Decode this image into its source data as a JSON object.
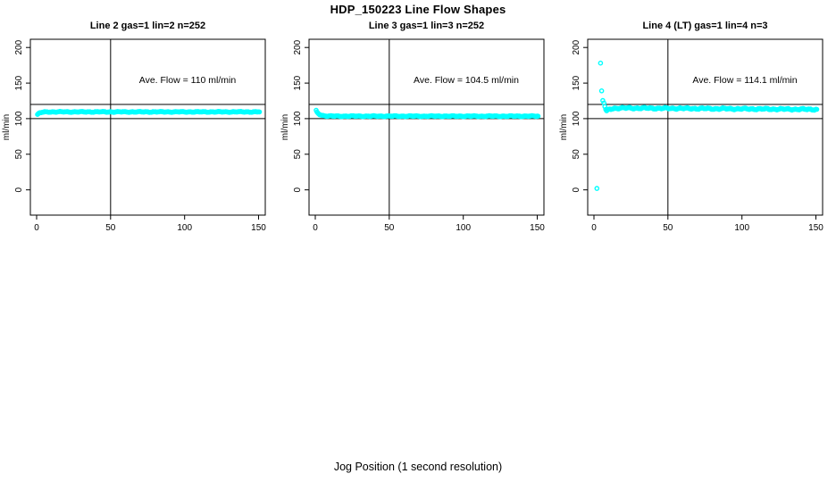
{
  "header": {
    "title": "HDP_150223  Line Flow Shapes"
  },
  "footer": {
    "xlabel": "Jog Position (1 second resolution)"
  },
  "chart_data": {
    "type": "scatter",
    "title": "HDP_150223  Line Flow Shapes",
    "xlabel": "Jog Position (1 second resolution)",
    "ylabel": "ml/min",
    "marker": "open-circle",
    "marker_color": "#00FFFF",
    "axis_color": "#000000",
    "background": "#ffffff",
    "grid": false,
    "xlim": [
      -4.2,
      154.5
    ],
    "ylim": [
      -35.5,
      211.5
    ],
    "x_ticks": [
      0,
      50,
      100,
      150
    ],
    "y_ticks": [
      0,
      50,
      100,
      150,
      200
    ],
    "ref_lines_h": [
      100,
      120
    ],
    "ref_line_v": 50,
    "panels": [
      {
        "title": "Line 2 gas=1 lin=2 n=252",
        "annotation": "Ave. Flow =  110  ml/min",
        "ave_flow_ml_min": 110,
        "n": 252,
        "jitter": 0.7,
        "series": {
          "x_start": 0.6,
          "x_end": 151,
          "x_step": 0.6,
          "start_value": 105.5,
          "settle_value": 109.5,
          "settle_by_x": 4
        },
        "outlier_points": []
      },
      {
        "title": "Line 3 gas=1 lin=3 n=252",
        "annotation": "Ave. Flow =  104.5  ml/min",
        "ave_flow_ml_min": 104.5,
        "n": 252,
        "jitter": 0.7,
        "series": {
          "x_start": 0.6,
          "x_end": 151,
          "x_step": 0.6,
          "start_value": 111,
          "settle_value": 103.5,
          "settle_by_x": 5
        },
        "outlier_points": []
      },
      {
        "title": "Line 4 (LT) gas=1 lin=4 n=3",
        "annotation": "Ave. Flow =  114.1  ml/min",
        "ave_flow_ml_min": 114.1,
        "n": 3,
        "jitter": 1.3,
        "series": {
          "x_start": 9,
          "x_end": 151,
          "x_step": 0.6,
          "start_value": 111.5,
          "settle_value": 115,
          "settle_by_x": 14,
          "drift_to": 113
        },
        "outlier_points": [
          {
            "x": 2.0,
            "y": 2
          },
          {
            "x": 4.5,
            "y": 178
          },
          {
            "x": 5.2,
            "y": 139
          },
          {
            "x": 6.0,
            "y": 125.5
          },
          {
            "x": 6.8,
            "y": 122
          },
          {
            "x": 7.4,
            "y": 117
          },
          {
            "x": 8.0,
            "y": 113
          },
          {
            "x": 8.6,
            "y": 111
          }
        ]
      }
    ]
  }
}
